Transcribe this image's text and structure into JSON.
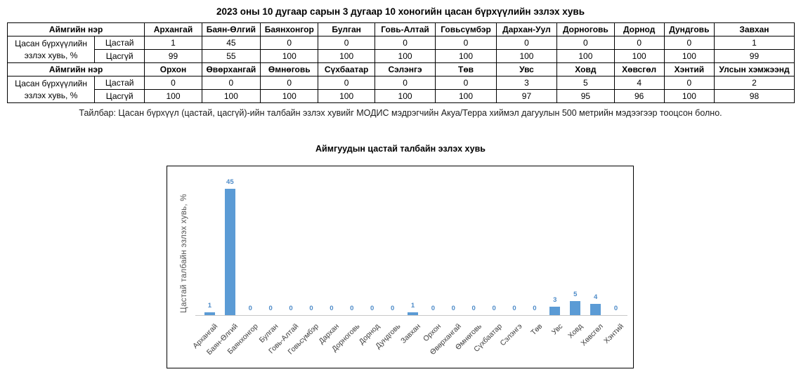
{
  "page_title": "2023 оны 10 дугаар сарын 3 дугаар 10 хоногийн цасан бүрхүүлийн эзлэх хувь",
  "table": {
    "header_label": "Аймгийн нэр",
    "row_label": "Цасан бүрхүүлийн эзлэх хувь, %",
    "sub_labels": [
      "Цастай",
      "Цасгүй"
    ],
    "sections": [
      {
        "provinces": [
          "Архангай",
          "Баян-Өлгий",
          "Баянхонгор",
          "Булган",
          "Говь-Алтай",
          "Говьсүмбэр",
          "Дархан-Уул",
          "Дорноговь",
          "Дорнод",
          "Дундговь",
          "Завхан"
        ],
        "snowy": [
          1,
          45,
          0,
          0,
          0,
          0,
          0,
          0,
          0,
          0,
          1
        ],
        "snowless": [
          99,
          55,
          100,
          100,
          100,
          100,
          100,
          100,
          100,
          100,
          99
        ]
      },
      {
        "provinces": [
          "Орхон",
          "Өвөрхангай",
          "Өмнөговь",
          "Сүхбаатар",
          "Сэлэнгэ",
          "Төв",
          "Увс",
          "Ховд",
          "Хөвсгөл",
          "Хэнтий",
          "Улсын хэмжээнд"
        ],
        "snowy": [
          0,
          0,
          0,
          0,
          0,
          0,
          3,
          5,
          4,
          0,
          2
        ],
        "snowless": [
          100,
          100,
          100,
          100,
          100,
          100,
          97,
          95,
          96,
          100,
          98
        ]
      }
    ]
  },
  "note": "Тайлбар: Цасан бүрхүүл (цастай, цасгүй)-ийн талбайн эзлэх хувийг МОДИС мэдрэгчийн Акуа/Терра хиймэл дагуулын 500 метрийн мэдээгээр тооцсон болно.",
  "chart_data": {
    "type": "bar",
    "title": "Аймгуудын цастай талбайн эзлэх хувь",
    "ylabel": "Цастай талбайн эзлэх хувь, %",
    "categories": [
      "Архангай",
      "Баян-Өлгий",
      "Баянхонгор",
      "Булган",
      "Говь-Алтай",
      "Говьсүмбэр",
      "Дархан",
      "Дорноговь",
      "Дорнод",
      "Дундговь",
      "Завхан",
      "Орхон",
      "Өвөрхангай",
      "Өмнөговь",
      "Сүхбаатар",
      "Сэлэнгэ",
      "Төв",
      "Увс",
      "Ховд",
      "Хөвсгөл",
      "Хэнтий"
    ],
    "values": [
      1,
      45,
      0,
      0,
      0,
      0,
      0,
      0,
      0,
      0,
      1,
      0,
      0,
      0,
      0,
      0,
      0,
      3,
      5,
      4,
      0
    ],
    "xlabel": "",
    "ylim": [
      0,
      47
    ],
    "grid": false,
    "legend": "none",
    "data_labels": true,
    "bar_color": "#5b9bd5",
    "label_color": "#4e8bc8"
  }
}
